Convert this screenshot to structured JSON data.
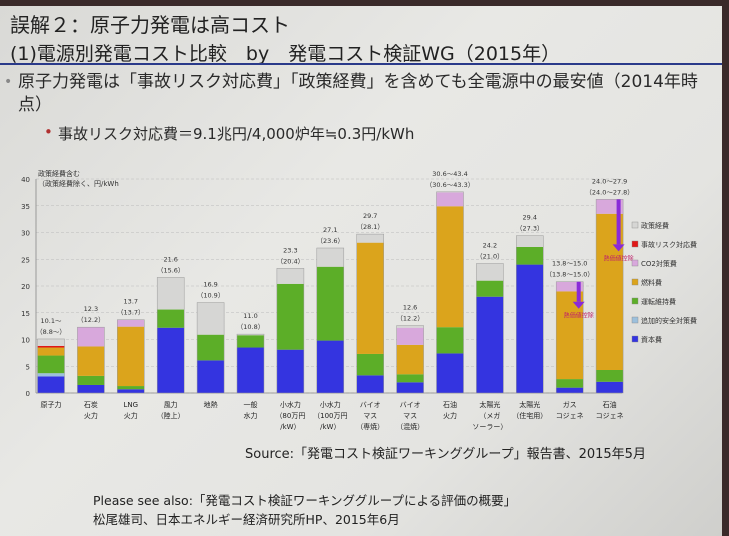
{
  "slide": {
    "title": "誤解２：原子力発電は高コスト",
    "subtitle": "(1)電源別発電コスト比較　by　発電コスト検証WG（2015年）",
    "bullet1": "原子力発電は「事故リスク対応費」「政策経費」を含めても全電源中の最安値（2014年時点）",
    "bullet2": "事故リスク対応費＝9.1兆円/4,000炉年≒0.3円/kWh",
    "source": "Source:「発電コスト検証ワーキンググループ」報告書、2015年5月",
    "see_also_1": "Please see also:「発電コスト検証ワーキンググループによる評価の概要」",
    "see_also_2": "松尾雄司、日本エネルギー経済研究所HP、2015年6月"
  },
  "chart_data": {
    "type": "bar",
    "stacked": true,
    "ylabel_1": "政策経費含む",
    "ylabel_2": "（政策経費除く、円/kWh",
    "ylim": [
      0,
      40
    ],
    "yticks": [
      "0",
      "5",
      "10",
      "15",
      "20",
      "25",
      "30",
      "35",
      "40"
    ],
    "grid": true,
    "legend_position": "right",
    "annotation": "熱価値控除",
    "categories": [
      [
        "原子力"
      ],
      [
        "石炭",
        "火力"
      ],
      [
        "LNG",
        "火力"
      ],
      [
        "風力",
        "（陸上）"
      ],
      [
        "地熱"
      ],
      [
        "一般",
        "水力"
      ],
      [
        "小水力",
        "（80万円",
        "/kW）"
      ],
      [
        "小水力",
        "（100万円",
        "/kW）"
      ],
      [
        "バイオ",
        "マス",
        "（専焼）"
      ],
      [
        "バイオ",
        "マス",
        "（混焼）"
      ],
      [
        "石油",
        "火力"
      ],
      [
        "太陽光",
        "（メガ",
        "ソーラー）"
      ],
      [
        "太陽光",
        "（住宅用）"
      ],
      [
        "ガス",
        "コジェネ"
      ],
      [
        "石油",
        "コジェネ"
      ]
    ],
    "total_labels": [
      "10.1～",
      "12.3",
      "13.7",
      "21.6",
      "16.9",
      "11.0",
      "23.3",
      "27.1",
      "29.7",
      "12.6",
      "30.6～43.4",
      "24.2",
      "29.4",
      "13.8～15.0",
      "24.0～27.9"
    ],
    "excl_labels": [
      "（8.8～）",
      "（12.2）",
      "（13.7）",
      "（15.6）",
      "（10.9）",
      "（10.8）",
      "（20.4）",
      "（23.6）",
      "（28.1）",
      "（12.2）",
      "（30.6～43.3）",
      "（21.0）",
      "（27.3）",
      "（13.8～15.0）",
      "（24.0～27.8）"
    ],
    "series": [
      {
        "name": "資本費",
        "color": "#3434e0",
        "values": [
          3.1,
          1.5,
          0.7,
          12.2,
          6.1,
          8.5,
          8.1,
          9.8,
          3.3,
          2.0,
          7.4,
          18.0,
          24.0,
          1.0,
          2.1
        ]
      },
      {
        "name": "追加的安全対策費",
        "color": "#9cc0dc",
        "values": [
          0.6,
          0,
          0,
          0,
          0,
          0,
          0,
          0,
          0,
          0,
          0,
          0,
          0,
          0,
          0
        ]
      },
      {
        "name": "運転維持費",
        "color": "#5cae28",
        "values": [
          3.3,
          1.7,
          0.6,
          3.4,
          4.8,
          2.3,
          12.3,
          13.8,
          4.0,
          1.5,
          4.9,
          3.0,
          3.3,
          1.6,
          2.2
        ]
      },
      {
        "name": "燃料費",
        "color": "#dba41c",
        "values": [
          1.5,
          5.5,
          11.1,
          0,
          0,
          0,
          0,
          0,
          20.8,
          5.5,
          22.6,
          0,
          0,
          16.4,
          29.2
        ]
      },
      {
        "name": "CO2対策費",
        "color": "#d8a8dc",
        "values": [
          0,
          3.6,
          1.3,
          0,
          0,
          0,
          0,
          0,
          0,
          3.2,
          2.6,
          0,
          0,
          1.8,
          2.7
        ]
      },
      {
        "name": "事故リスク対応費",
        "color": "#e01818",
        "values": [
          0.3,
          0,
          0,
          0,
          0,
          0,
          0,
          0,
          0,
          0,
          0,
          0,
          0,
          0,
          0
        ]
      },
      {
        "name": "政策経費",
        "color": "#d6d6d4",
        "values": [
          1.3,
          0,
          0,
          6.0,
          6.0,
          0.2,
          2.9,
          3.5,
          1.6,
          0.4,
          0.1,
          3.2,
          2.1,
          0,
          0
        ]
      }
    ]
  }
}
